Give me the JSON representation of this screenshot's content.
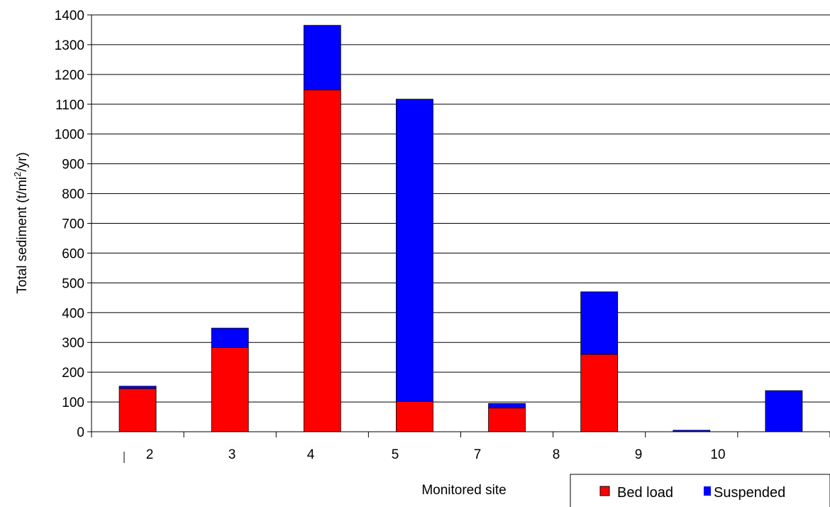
{
  "chart_data": {
    "type": "bar",
    "stacked": true,
    "categories": [
      "",
      "",
      "",
      "",
      "",
      "",
      "",
      ""
    ],
    "x_tick_labels": [
      "2",
      "3",
      "4",
      "5",
      "7",
      "8",
      "9",
      "10"
    ],
    "series": [
      {
        "name": "Bed load",
        "color": "#ff0000",
        "values": [
          145,
          283,
          1148,
          102,
          80,
          260,
          0,
          0
        ]
      },
      {
        "name": "Suspended",
        "color": "#0000ff",
        "values": [
          8,
          65,
          217,
          1015,
          15,
          210,
          5,
          138
        ]
      }
    ],
    "xlabel": "Monitored site",
    "ylabel_main": "Total sediment (t/mi",
    "ylabel_sup": "2",
    "ylabel_end": "/yr)",
    "ylim": [
      0,
      1400
    ],
    "yticks": [
      0,
      100,
      200,
      300,
      400,
      500,
      600,
      700,
      800,
      900,
      1000,
      1100,
      1200,
      1300,
      1400
    ],
    "grid": true,
    "legend_position": "bottom-right"
  }
}
